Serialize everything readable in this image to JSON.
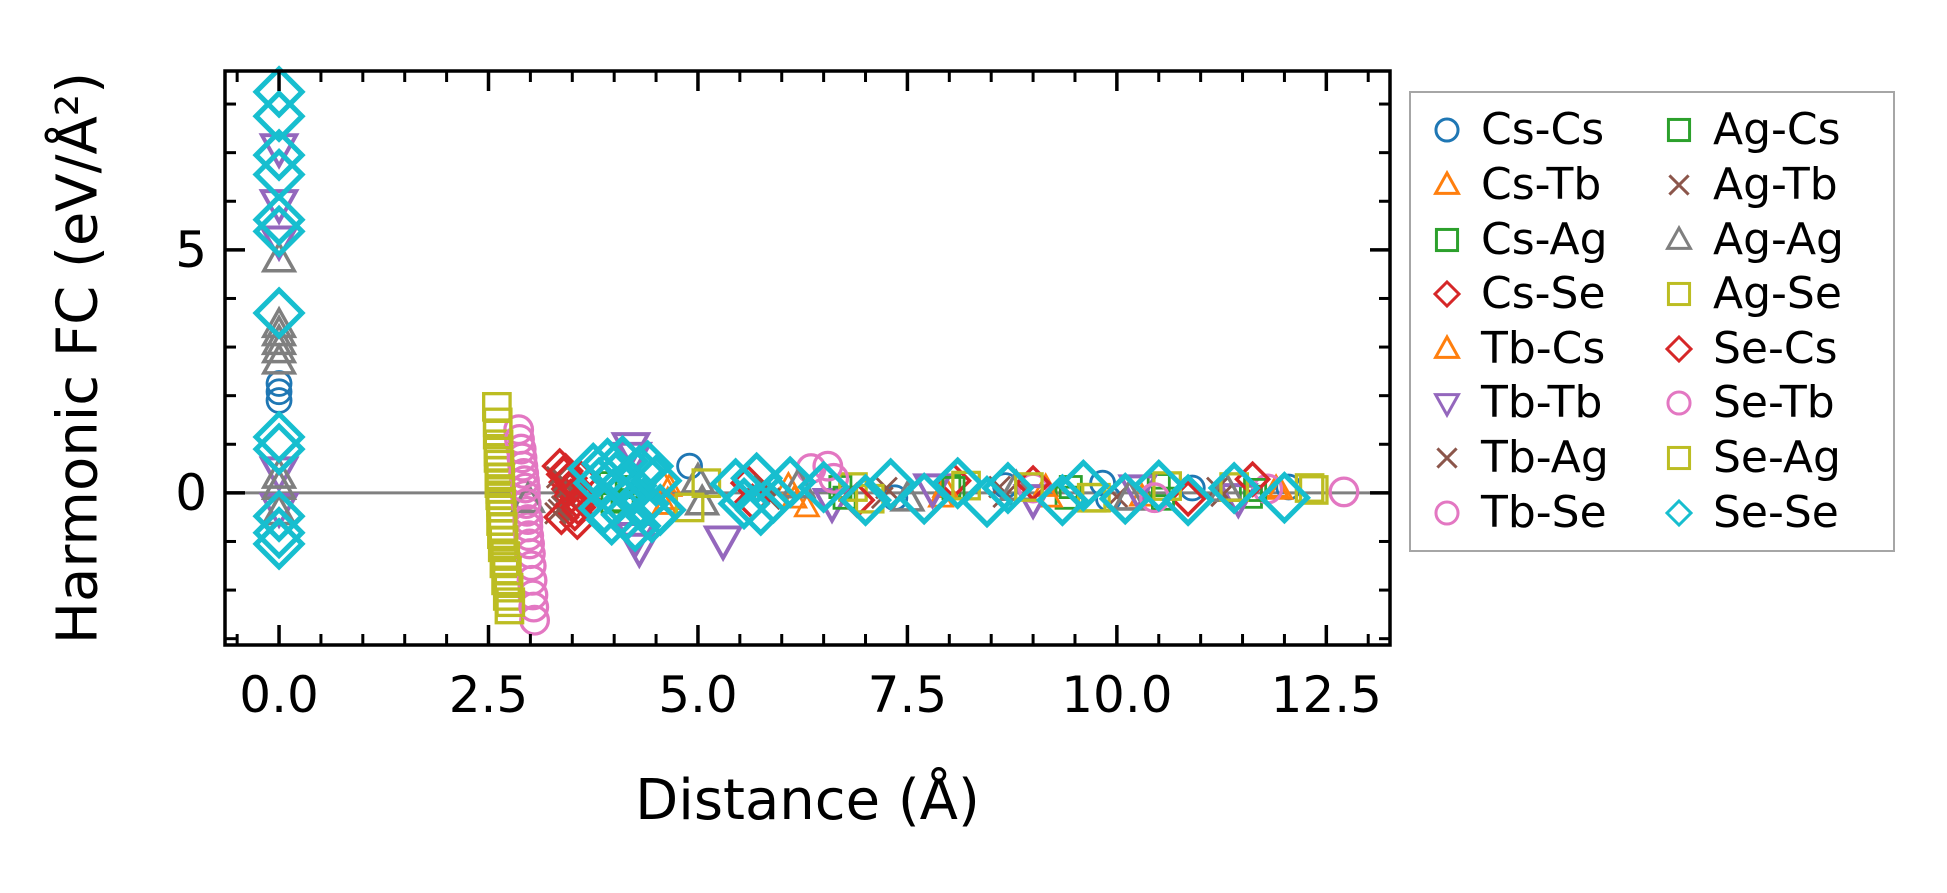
{
  "chart_data": {
    "type": "scatter",
    "title": "",
    "xlabel": "Distance (Å)",
    "ylabel": "Harmonic FC (eV/Å²)",
    "xlim": [
      -0.645,
      13.26
    ],
    "ylim": [
      -3.13,
      8.68
    ],
    "grid": false,
    "legend_position": "outside-right",
    "zero_line": {
      "y": 0,
      "color": "#808080"
    },
    "xticks_major": {
      "values": [
        0,
        2.5,
        5,
        7.5,
        10,
        12.5
      ],
      "labels": [
        "0.0",
        "2.5",
        "5.0",
        "7.5",
        "10.0",
        "12.5"
      ]
    },
    "xtick_minor_step": 0.5,
    "yticks_major": {
      "values": [
        0,
        5
      ],
      "labels": [
        "0",
        "5"
      ]
    },
    "ytick_minor_step": 1,
    "axis_color": "#000000",
    "series": [
      {
        "name": "Cs-Cs",
        "marker": "circle",
        "color": "#1f77b4",
        "size": 26,
        "points": [
          [
            0,
            2.25
          ],
          [
            0,
            2.08
          ],
          [
            0,
            1.9
          ],
          [
            4.9,
            0.55
          ],
          [
            7.35,
            -0.1
          ],
          [
            8.67,
            0.15
          ],
          [
            9.83,
            0.2
          ],
          [
            9.9,
            -0.12
          ],
          [
            10.9,
            0.1
          ],
          [
            12.05,
            0.12
          ]
        ]
      },
      {
        "name": "Cs-Tb",
        "marker": "triangle-up",
        "color": "#ff7f0e",
        "size": 24,
        "points": [
          [
            4.58,
            0.22
          ],
          [
            4.64,
            -0.15
          ],
          [
            6.08,
            0.15
          ],
          [
            6.3,
            -0.3
          ],
          [
            7.9,
            -0.1
          ],
          [
            9.15,
            0.12
          ],
          [
            11.9,
            0.1
          ]
        ]
      },
      {
        "name": "Cs-Ag",
        "marker": "square",
        "color": "#2ca02c",
        "size": 24,
        "points": [
          [
            3.95,
            0.2
          ],
          [
            4.1,
            -0.15
          ],
          [
            6.7,
            0.12
          ],
          [
            8.0,
            0.14
          ],
          [
            9.4,
            -0.1
          ],
          [
            10.5,
            0.16
          ],
          [
            11.6,
            -0.08
          ]
        ]
      },
      {
        "name": "Cs-Se",
        "marker": "diamond",
        "color": "#d62728",
        "size": 32,
        "points": [
          [
            3.35,
            0.55
          ],
          [
            3.4,
            0.38
          ],
          [
            3.43,
            0.22
          ],
          [
            3.46,
            0.08
          ],
          [
            3.48,
            -0.08
          ],
          [
            3.5,
            -0.25
          ],
          [
            3.53,
            -0.42
          ],
          [
            3.56,
            -0.6
          ],
          [
            3.6,
            0.3
          ],
          [
            5.6,
            0.2
          ],
          [
            8.05,
            0.25
          ],
          [
            10.85,
            -0.12
          ]
        ]
      },
      {
        "name": "Tb-Cs",
        "marker": "triangle-up",
        "color": "#ff7f0e",
        "size": 24,
        "points": [
          [
            4.6,
            -0.25
          ],
          [
            4.66,
            0.12
          ],
          [
            6.15,
            -0.12
          ],
          [
            7.95,
            0.1
          ],
          [
            9.2,
            -0.1
          ],
          [
            10.3,
            -0.08
          ],
          [
            11.95,
            0.06
          ]
        ]
      },
      {
        "name": "Tb-Tb",
        "marker": "triangle-down",
        "color": "#9467bd",
        "size": 36,
        "points": [
          [
            0,
            7.1
          ],
          [
            0,
            5.95
          ],
          [
            0,
            5.2
          ],
          [
            0,
            0.45
          ],
          [
            0,
            -0.3
          ],
          [
            4.2,
            0.95
          ],
          [
            4.22,
            0.75
          ],
          [
            4.26,
            -0.9
          ],
          [
            4.3,
            -1.12
          ],
          [
            5.3,
            -0.97
          ],
          [
            6.6,
            -0.2
          ],
          [
            7.8,
            0.1
          ],
          [
            9.0,
            -0.12
          ],
          [
            10.25,
            0.08
          ],
          [
            11.45,
            -0.1
          ]
        ]
      },
      {
        "name": "Tb-Ag",
        "marker": "x",
        "color": "#8c564b",
        "size": 26,
        "points": [
          [
            3.3,
            -0.42
          ],
          [
            3.32,
            0.32
          ],
          [
            3.38,
            -0.28
          ],
          [
            3.44,
            0.12
          ],
          [
            5.8,
            0.15
          ],
          [
            7.2,
            -0.1
          ],
          [
            8.6,
            0.12
          ],
          [
            11.2,
            0.1
          ]
        ]
      },
      {
        "name": "Tb-Se",
        "marker": "circle",
        "color": "#e377c2",
        "size": 30,
        "points": [
          [
            2.86,
            1.3
          ],
          [
            2.89,
            0.9
          ],
          [
            2.91,
            0.55
          ],
          [
            2.93,
            0.25
          ],
          [
            2.94,
            -0.05
          ],
          [
            2.96,
            -0.38
          ],
          [
            2.97,
            -0.7
          ],
          [
            2.99,
            -1.05
          ],
          [
            3.01,
            -1.5
          ],
          [
            3.03,
            -2.1
          ],
          [
            3.05,
            -2.62
          ],
          [
            6.35,
            0.5
          ],
          [
            9.0,
            0.1
          ],
          [
            11.8,
            0.08
          ]
        ]
      },
      {
        "name": "Ag-Cs",
        "marker": "square",
        "color": "#2ca02c",
        "size": 24,
        "points": [
          [
            3.98,
            -0.18
          ],
          [
            4.15,
            0.12
          ],
          [
            6.75,
            -0.1
          ],
          [
            8.05,
            0.1
          ],
          [
            9.45,
            0.12
          ],
          [
            10.55,
            -0.12
          ],
          [
            11.65,
            0.06
          ]
        ]
      },
      {
        "name": "Ag-Tb",
        "marker": "x",
        "color": "#8c564b",
        "size": 26,
        "points": [
          [
            3.34,
            -0.35
          ],
          [
            3.4,
            0.25
          ],
          [
            3.47,
            -0.15
          ],
          [
            5.85,
            -0.12
          ],
          [
            7.25,
            0.1
          ],
          [
            8.65,
            -0.08
          ],
          [
            10.0,
            -0.08
          ],
          [
            11.25,
            -0.06
          ]
        ]
      },
      {
        "name": "Ag-Ag",
        "marker": "triangle-up",
        "color": "#7f7f7f",
        "size": 32,
        "points": [
          [
            0,
            4.8
          ],
          [
            0,
            3.45
          ],
          [
            0,
            3.28
          ],
          [
            0,
            3.1
          ],
          [
            0,
            2.93
          ],
          [
            0,
            2.7
          ],
          [
            0,
            0.35
          ],
          [
            0,
            0.12
          ],
          [
            0,
            -0.4
          ],
          [
            2.97,
            -0.15
          ],
          [
            5.0,
            0.25
          ],
          [
            5.05,
            -0.2
          ],
          [
            6.2,
            0.15
          ],
          [
            7.5,
            -0.12
          ],
          [
            8.8,
            0.1
          ],
          [
            10.15,
            -0.1
          ],
          [
            11.3,
            0.08
          ]
        ]
      },
      {
        "name": "Ag-Se",
        "marker": "square",
        "color": "#bcbd22",
        "size": 30,
        "points": [
          [
            2.6,
            1.77
          ],
          [
            2.61,
            1.45
          ],
          [
            2.62,
            1.0
          ],
          [
            2.62,
            0.72
          ],
          [
            2.63,
            0.45
          ],
          [
            2.63,
            0.2
          ],
          [
            2.64,
            -0.05
          ],
          [
            2.65,
            -0.3
          ],
          [
            2.65,
            -0.58
          ],
          [
            2.66,
            -0.85
          ],
          [
            2.67,
            -1.12
          ],
          [
            2.69,
            -1.45
          ],
          [
            2.71,
            -1.8
          ],
          [
            2.73,
            -2.12
          ],
          [
            2.75,
            -2.4
          ],
          [
            4.9,
            -0.3
          ],
          [
            6.85,
            0.12
          ],
          [
            8.2,
            0.15
          ],
          [
            9.7,
            -0.1
          ],
          [
            10.6,
            0.14
          ],
          [
            12.3,
            0.1
          ]
        ]
      },
      {
        "name": "Se-Cs",
        "marker": "diamond",
        "color": "#d62728",
        "size": 32,
        "points": [
          [
            3.37,
            -0.5
          ],
          [
            3.42,
            0.45
          ],
          [
            3.47,
            0.3
          ],
          [
            3.52,
            0.15
          ],
          [
            3.57,
            -0.3
          ],
          [
            3.62,
            -0.12
          ],
          [
            5.65,
            -0.18
          ],
          [
            6.9,
            -0.15
          ],
          [
            9.0,
            0.2
          ],
          [
            11.62,
            0.28
          ]
        ]
      },
      {
        "name": "Se-Tb",
        "marker": "circle",
        "color": "#e377c2",
        "size": 30,
        "points": [
          [
            2.87,
            1.1
          ],
          [
            2.9,
            0.72
          ],
          [
            2.92,
            0.4
          ],
          [
            2.94,
            0.1
          ],
          [
            2.95,
            -0.22
          ],
          [
            2.97,
            -0.55
          ],
          [
            2.98,
            -0.88
          ],
          [
            3.0,
            -1.25
          ],
          [
            3.02,
            -1.8
          ],
          [
            3.04,
            -2.35
          ],
          [
            6.55,
            0.55
          ],
          [
            6.62,
            0.3
          ],
          [
            10.45,
            -0.1
          ],
          [
            12.71,
            0.02
          ]
        ]
      },
      {
        "name": "Se-Ag",
        "marker": "square",
        "color": "#bcbd22",
        "size": 30,
        "points": [
          [
            2.61,
            1.2
          ],
          [
            2.62,
            0.85
          ],
          [
            2.63,
            0.58
          ],
          [
            2.64,
            0.32
          ],
          [
            2.64,
            0.08
          ],
          [
            2.65,
            -0.18
          ],
          [
            2.66,
            -0.45
          ],
          [
            2.67,
            -0.7
          ],
          [
            2.68,
            -0.98
          ],
          [
            2.7,
            -1.3
          ],
          [
            2.72,
            -1.6
          ],
          [
            2.74,
            -1.95
          ],
          [
            2.76,
            -2.25
          ],
          [
            5.1,
            0.2
          ],
          [
            7.05,
            -0.12
          ],
          [
            8.95,
            0.12
          ],
          [
            9.75,
            -0.1
          ],
          [
            11.4,
            0.12
          ],
          [
            12.35,
            0.06
          ]
        ]
      },
      {
        "name": "Se-Se",
        "marker": "diamond",
        "color": "#17becf",
        "size": 46,
        "points": [
          [
            0,
            8.25
          ],
          [
            0,
            7.75
          ],
          [
            0,
            6.95
          ],
          [
            0,
            6.55
          ],
          [
            0,
            5.62
          ],
          [
            0,
            5.38
          ],
          [
            0,
            3.7
          ],
          [
            0,
            1.15
          ],
          [
            0,
            0.9
          ],
          [
            0,
            -0.48
          ],
          [
            0,
            -0.82
          ],
          [
            0,
            -1.05
          ],
          [
            3.75,
            0.5
          ],
          [
            3.82,
            0.2
          ],
          [
            3.88,
            -0.32
          ],
          [
            3.92,
            0.6
          ],
          [
            3.97,
            -0.55
          ],
          [
            4.02,
            0.32
          ],
          [
            4.05,
            -0.1
          ],
          [
            4.1,
            0.65
          ],
          [
            4.15,
            -0.45
          ],
          [
            4.2,
            0.15
          ],
          [
            4.25,
            -0.68
          ],
          [
            4.3,
            0.45
          ],
          [
            4.35,
            -0.22
          ],
          [
            4.4,
            0.55
          ],
          [
            4.45,
            -0.5
          ],
          [
            4.5,
            0.25
          ],
          [
            4.55,
            -0.35
          ],
          [
            5.45,
            0.18
          ],
          [
            5.55,
            -0.22
          ],
          [
            5.7,
            0.3
          ],
          [
            5.75,
            -0.35
          ],
          [
            5.9,
            -0.1
          ],
          [
            6.1,
            0.22
          ],
          [
            6.5,
            0.12
          ],
          [
            7.0,
            -0.15
          ],
          [
            7.3,
            0.18
          ],
          [
            7.7,
            -0.12
          ],
          [
            8.1,
            0.2
          ],
          [
            8.45,
            -0.18
          ],
          [
            8.7,
            0.1
          ],
          [
            9.35,
            -0.15
          ],
          [
            9.6,
            0.15
          ],
          [
            10.1,
            -0.12
          ],
          [
            10.5,
            0.15
          ],
          [
            10.85,
            -0.15
          ],
          [
            11.4,
            0.1
          ],
          [
            12.0,
            -0.1
          ]
        ]
      }
    ]
  }
}
